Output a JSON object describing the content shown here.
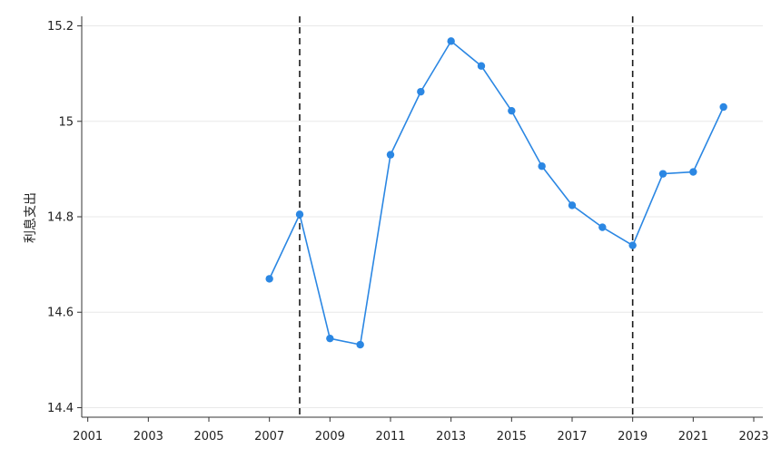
{
  "chart_data": {
    "type": "line",
    "ylabel": "利息支出",
    "xlabel": "",
    "title": "",
    "xlim": [
      2000.8,
      2023.3
    ],
    "ylim": [
      14.38,
      15.22
    ],
    "x_ticks": [
      "2001",
      "2003",
      "2005",
      "2007",
      "2009",
      "2011",
      "2013",
      "2015",
      "2017",
      "2019",
      "2021",
      "2023"
    ],
    "y_ticks": [
      "14.4",
      "14.6",
      "14.8",
      "15",
      "15.2"
    ],
    "grid": "horizontal",
    "series": [
      {
        "color": "#2b87e3",
        "x": [
          2007,
          2008,
          2009,
          2010,
          2011,
          2012,
          2013,
          2014,
          2015,
          2016,
          2017,
          2018,
          2019,
          2020,
          2021,
          2022
        ],
        "y": [
          14.67,
          14.805,
          14.545,
          14.532,
          14.93,
          15.062,
          15.168,
          15.116,
          15.022,
          14.906,
          14.824,
          14.778,
          14.74,
          14.89,
          14.894,
          15.03
        ],
        "segments": [
          [
            0,
            15
          ]
        ]
      }
    ],
    "reference_lines": [
      {
        "x": 2008,
        "style": "dashed",
        "color": "#1a1a1a"
      },
      {
        "x": 2019,
        "style": "dashed",
        "color": "#1a1a1a"
      }
    ],
    "colors": {
      "axis": "#333333",
      "grid": "#e8e8e8",
      "line": "#2b87e3"
    }
  }
}
